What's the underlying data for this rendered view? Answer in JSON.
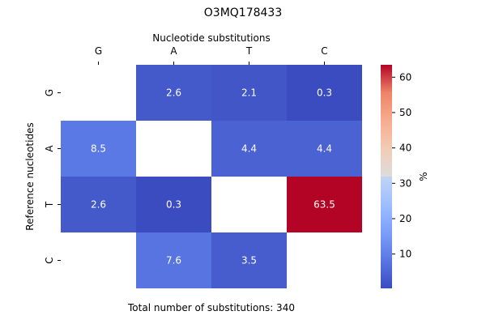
{
  "chart_data": {
    "type": "heatmap",
    "title": "O3MQ178433",
    "xlabel": "Nucleotide substitutions",
    "ylabel": "Reference nucleotides",
    "footer": "Total number of substitutions: 340",
    "x_categories": [
      "G",
      "A",
      "T",
      "C"
    ],
    "y_categories": [
      "G",
      "A",
      "T",
      "C"
    ],
    "values": [
      [
        null,
        2.6,
        2.1,
        0.3
      ],
      [
        8.5,
        null,
        4.4,
        4.4
      ],
      [
        2.6,
        0.3,
        null,
        63.5
      ],
      [
        null,
        7.6,
        3.5,
        null
      ]
    ],
    "colorbar": {
      "label": "%",
      "ticks": [
        10,
        20,
        30,
        40,
        50,
        60
      ],
      "range": [
        0.3,
        63.5
      ],
      "colormap": "coolwarm"
    }
  }
}
